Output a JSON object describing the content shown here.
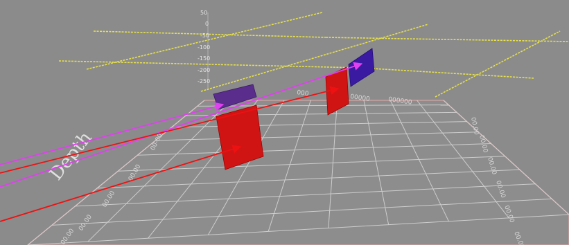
{
  "scene": {
    "background_color": "#8b8b8b",
    "grid_color": "#d9d9d9",
    "grid_border_color": "#c9a0a0",
    "track_color": "#e6e04a",
    "vertical_axis_ticks": [
      "50",
      "0",
      "-50",
      "-100",
      "-150",
      "-200",
      "-250"
    ],
    "axis_label": "Depth",
    "left_edge_labels": [
      "00-00",
      "00.00",
      "00.00",
      "00.00",
      "00.00"
    ],
    "right_edge_labels": [
      "00.00",
      "00.00",
      "00.00",
      "00.00",
      "00.00",
      "00.00"
    ],
    "far_edge_labels": [
      "000",
      "00000",
      "000000"
    ]
  },
  "markers": [
    {
      "name": "near-top-panel",
      "color": "#5a2d8c"
    },
    {
      "name": "near-bottom-panel",
      "color": "#d01414"
    },
    {
      "name": "far-top-panel",
      "color": "#3a1aa0"
    },
    {
      "name": "far-bottom-panel",
      "color": "#d01414"
    }
  ],
  "annotation_arrows": {
    "magenta": "#e040f0",
    "red": "#ee1111"
  }
}
